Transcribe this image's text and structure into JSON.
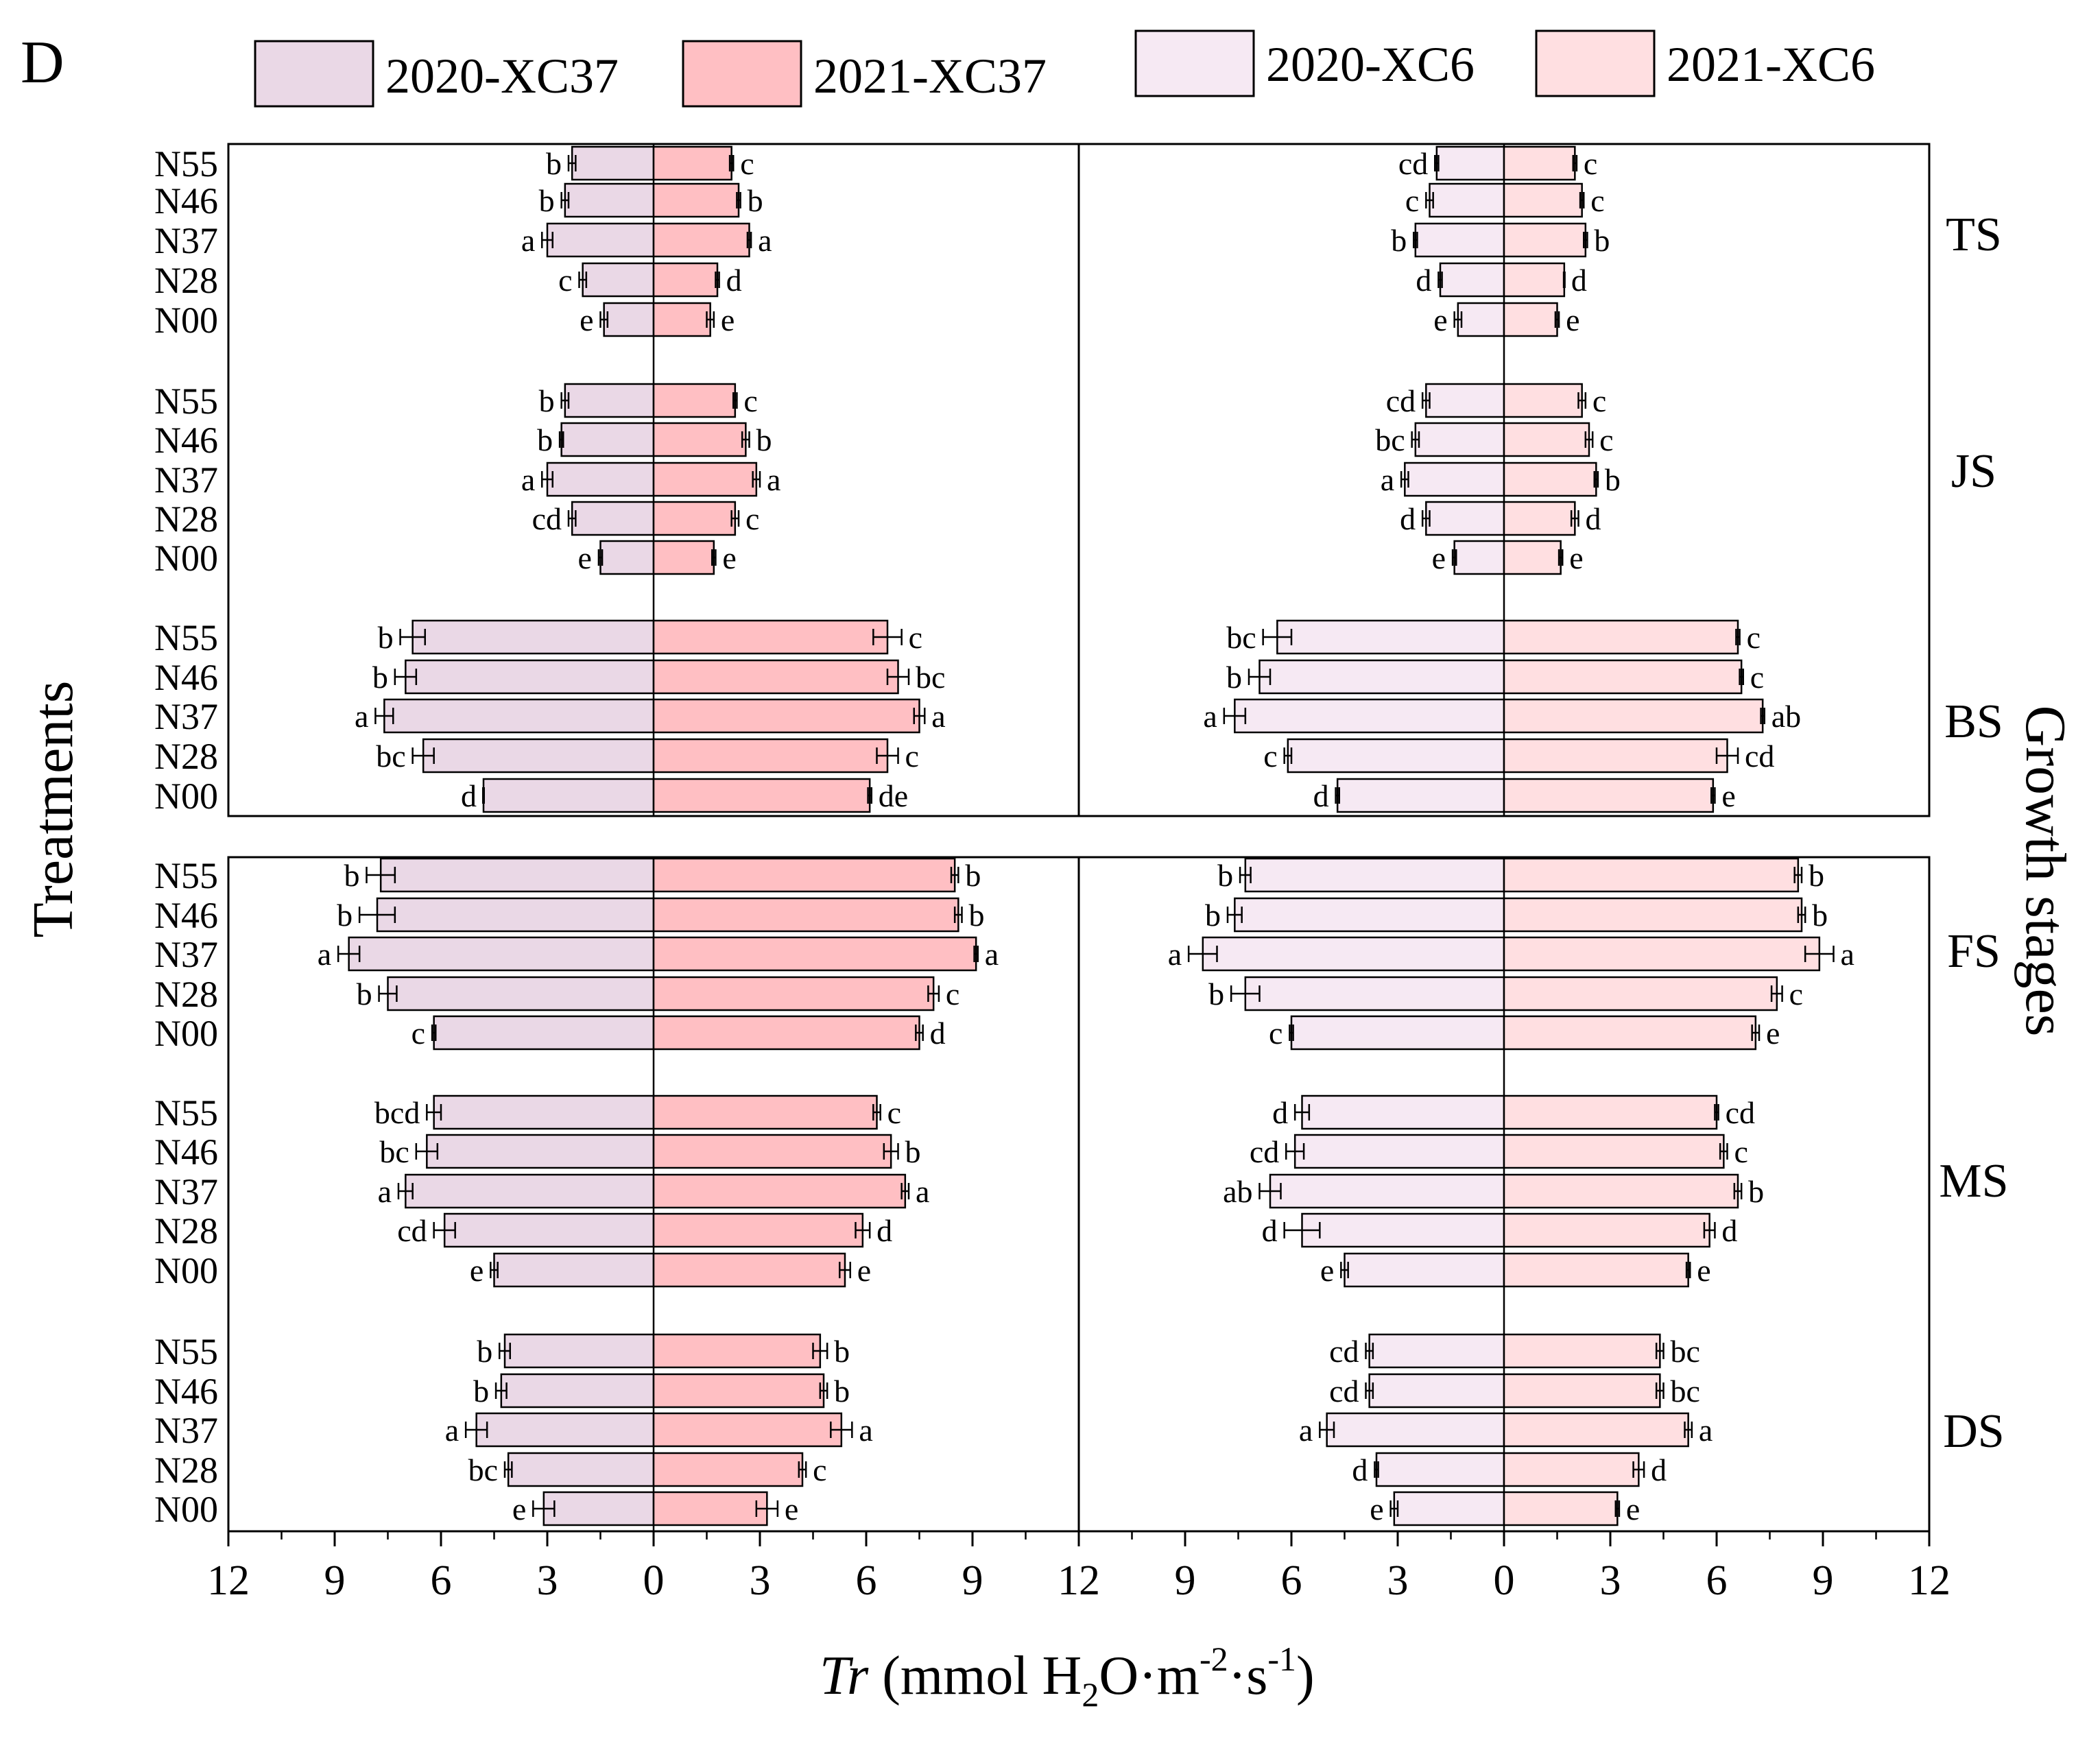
{
  "panel_label": "D",
  "chart_data": {
    "type": "bar",
    "orientation": "horizontal-back-to-back",
    "colors": {
      "2020-XC37": "#ead8e6",
      "2021-XC37": "#ffbfc3",
      "2020-XC6": "#f6e9f3",
      "2021-XC6": "#ffdfe1"
    },
    "legend": [
      "2020-XC37",
      "2021-XC37",
      "2020-XC6",
      "2021-XC6"
    ],
    "legend_position": "top",
    "xlabel_italic": "Tr",
    "xlabel_rest": " (mmol H",
    "xlabel_sub": "2",
    "xlabel_mid": "O·m",
    "xlabel_sup1": "-2",
    "xlabel_mid2": "·s",
    "xlabel_sup2": "-1",
    "xlabel_end": ")",
    "ylabel": "Treatments",
    "right_label": "Growth stages",
    "xlim": [
      12,
      0,
      12
    ],
    "xticks": [
      "12",
      "9",
      "6",
      "3",
      "0",
      "3",
      "6",
      "9",
      "12"
    ],
    "treatments": [
      "N55",
      "N46",
      "N37",
      "N28",
      "N00"
    ],
    "stages": [
      "TS",
      "JS",
      "BS",
      "FS",
      "MS",
      "DS"
    ],
    "panels": [
      {
        "name": "XC37",
        "left_series": "2020-XC37",
        "right_series": "2021-XC37",
        "stages": [
          {
            "stage": "TS",
            "left": [
              2.3,
              2.5,
              3.0,
              2.0,
              1.4
            ],
            "left_err": [
              0.1,
              0.1,
              0.15,
              0.1,
              0.1
            ],
            "left_letters": [
              "b",
              "b",
              "a",
              "c",
              "e"
            ],
            "right": [
              2.2,
              2.4,
              2.7,
              1.8,
              1.6
            ],
            "right_err": [
              0.05,
              0.05,
              0.05,
              0.05,
              0.1
            ],
            "right_letters": [
              "c",
              "b",
              "a",
              "d",
              "e"
            ]
          },
          {
            "stage": "JS",
            "left": [
              2.5,
              2.6,
              3.0,
              2.3,
              1.5
            ],
            "left_err": [
              0.1,
              0.05,
              0.15,
              0.1,
              0.05
            ],
            "left_letters": [
              "b",
              "b",
              "a",
              "cd",
              "e"
            ],
            "right": [
              2.3,
              2.6,
              2.9,
              2.3,
              1.7
            ],
            "right_err": [
              0.05,
              0.1,
              0.1,
              0.1,
              0.05
            ],
            "right_letters": [
              "c",
              "b",
              "a",
              "c",
              "e"
            ]
          },
          {
            "stage": "BS",
            "left": [
              6.8,
              7.0,
              7.6,
              6.5,
              4.8
            ],
            "left_err": [
              0.35,
              0.3,
              0.25,
              0.3,
              0.0
            ],
            "left_letters": [
              "b",
              "b",
              "a",
              "bc",
              "d"
            ],
            "right": [
              6.6,
              6.9,
              7.5,
              6.6,
              6.1
            ],
            "right_err": [
              0.4,
              0.3,
              0.15,
              0.3,
              0.05
            ],
            "right_letters": [
              "c",
              "bc",
              "a",
              "c",
              "de"
            ]
          }
        ]
      },
      {
        "name": "XC6",
        "left_series": "2020-XC6",
        "right_series": "2021-XC6",
        "stages": [
          {
            "stage": "TS",
            "left": [
              1.9,
              2.1,
              2.5,
              1.8,
              1.3
            ],
            "left_err": [
              0.05,
              0.1,
              0.05,
              0.05,
              0.1
            ],
            "left_letters": [
              "cd",
              "c",
              "b",
              "d",
              "e"
            ],
            "right": [
              2.0,
              2.2,
              2.3,
              1.7,
              1.5
            ],
            "right_err": [
              0.05,
              0.05,
              0.05,
              0.0,
              0.05
            ],
            "right_letters": [
              "c",
              "c",
              "b",
              "d",
              "e"
            ]
          },
          {
            "stage": "JS",
            "left": [
              2.2,
              2.5,
              2.8,
              2.2,
              1.4
            ],
            "left_err": [
              0.1,
              0.1,
              0.1,
              0.1,
              0.05
            ],
            "left_letters": [
              "cd",
              "bc",
              "a",
              "d",
              "e"
            ],
            "right": [
              2.2,
              2.4,
              2.6,
              2.0,
              1.6
            ],
            "right_err": [
              0.1,
              0.1,
              0.05,
              0.1,
              0.05
            ],
            "right_letters": [
              "c",
              "c",
              "b",
              "d",
              "e"
            ]
          },
          {
            "stage": "BS",
            "left": [
              6.4,
              6.9,
              7.6,
              6.1,
              4.7
            ],
            "left_err": [
              0.4,
              0.3,
              0.3,
              0.1,
              0.05
            ],
            "left_letters": [
              "bc",
              "b",
              "a",
              "c",
              "d"
            ],
            "right": [
              6.6,
              6.7,
              7.3,
              6.3,
              5.9
            ],
            "right_err": [
              0.05,
              0.05,
              0.05,
              0.3,
              0.05
            ],
            "right_letters": [
              "c",
              "c",
              "ab",
              "cd",
              "e"
            ]
          }
        ]
      },
      {
        "name": "XC37",
        "left_series": "2020-XC37",
        "right_series": "2021-XC37",
        "stages": [
          {
            "stage": "FS",
            "left": [
              7.7,
              7.8,
              8.6,
              7.5,
              6.2
            ],
            "left_err": [
              0.4,
              0.5,
              0.3,
              0.25,
              0.05
            ],
            "left_letters": [
              "b",
              "b",
              "a",
              "b",
              "c"
            ],
            "right": [
              8.5,
              8.6,
              9.1,
              7.9,
              7.5
            ],
            "right_err": [
              0.1,
              0.1,
              0.05,
              0.15,
              0.1
            ],
            "right_letters": [
              "b",
              "b",
              "a",
              "c",
              "d"
            ]
          },
          {
            "stage": "MS",
            "left": [
              6.2,
              6.4,
              7.0,
              5.9,
              4.5
            ],
            "left_err": [
              0.2,
              0.3,
              0.2,
              0.3,
              0.1
            ],
            "left_letters": [
              "bcd",
              "bc",
              "a",
              "cd",
              "e"
            ],
            "right": [
              6.3,
              6.7,
              7.1,
              5.9,
              5.4
            ],
            "right_err": [
              0.1,
              0.2,
              0.1,
              0.2,
              0.15
            ],
            "right_letters": [
              "c",
              "b",
              "a",
              "d",
              "e"
            ]
          },
          {
            "stage": "DS",
            "left": [
              4.2,
              4.3,
              5.0,
              4.1,
              3.1
            ],
            "left_err": [
              0.15,
              0.15,
              0.3,
              0.1,
              0.3
            ],
            "left_letters": [
              "b",
              "b",
              "a",
              "bc",
              "e"
            ],
            "right": [
              4.7,
              4.8,
              5.3,
              4.2,
              3.2
            ],
            "right_err": [
              0.2,
              0.1,
              0.3,
              0.1,
              0.3
            ],
            "right_letters": [
              "b",
              "b",
              "a",
              "c",
              "e"
            ]
          }
        ]
      },
      {
        "name": "XC6",
        "left_series": "2020-XC6",
        "right_series": "2021-XC6",
        "stages": [
          {
            "stage": "FS",
            "left": [
              7.3,
              7.6,
              8.5,
              7.3,
              6.0
            ],
            "left_err": [
              0.15,
              0.2,
              0.4,
              0.4,
              0.05
            ],
            "left_letters": [
              "b",
              "b",
              "a",
              "b",
              "c"
            ],
            "right": [
              8.3,
              8.4,
              8.9,
              7.7,
              7.1
            ],
            "right_err": [
              0.1,
              0.1,
              0.4,
              0.15,
              0.1
            ],
            "right_letters": [
              "b",
              "b",
              "a",
              "c",
              "e"
            ]
          },
          {
            "stage": "MS",
            "left": [
              5.7,
              5.9,
              6.6,
              5.7,
              4.5
            ],
            "left_err": [
              0.2,
              0.25,
              0.3,
              0.5,
              0.1
            ],
            "left_letters": [
              "d",
              "cd",
              "ab",
              "d",
              "e"
            ],
            "right": [
              6.0,
              6.2,
              6.6,
              5.8,
              5.2
            ],
            "right_err": [
              0.05,
              0.1,
              0.1,
              0.15,
              0.05
            ],
            "right_letters": [
              "cd",
              "c",
              "b",
              "d",
              "e"
            ]
          },
          {
            "stage": "DS",
            "left": [
              3.8,
              3.8,
              5.0,
              3.6,
              3.1
            ],
            "left_err": [
              0.1,
              0.1,
              0.2,
              0.05,
              0.1
            ],
            "left_letters": [
              "cd",
              "cd",
              "a",
              "d",
              "e"
            ],
            "right": [
              4.4,
              4.4,
              5.2,
              3.8,
              3.2
            ],
            "right_err": [
              0.1,
              0.1,
              0.1,
              0.15,
              0.05
            ],
            "right_letters": [
              "bc",
              "bc",
              "a",
              "d",
              "e"
            ]
          }
        ]
      }
    ]
  }
}
